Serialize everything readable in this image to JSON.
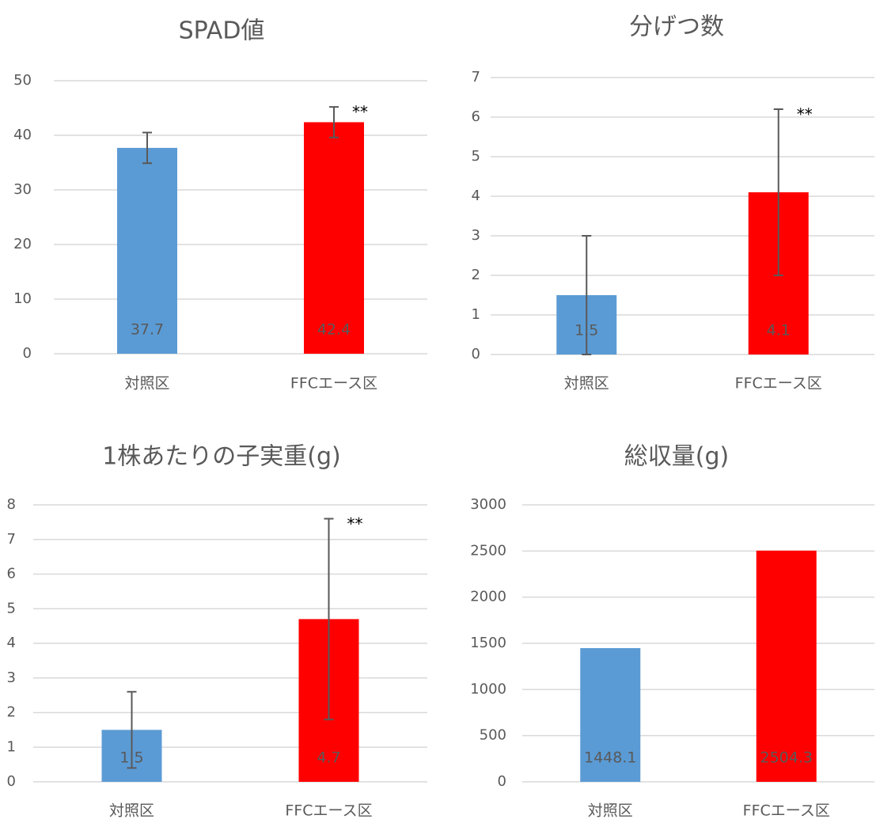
{
  "chart_data": [
    {
      "type": "bar",
      "title": "SPAD値",
      "categories": [
        "対照区",
        "FFCエース区"
      ],
      "values": [
        37.7,
        42.4
      ],
      "errors": [
        2.8,
        2.8
      ],
      "annotations": [
        null,
        "**"
      ],
      "colors": [
        "#5b9bd5",
        "#ff0000"
      ],
      "ylim": [
        0,
        50
      ],
      "yticks": [
        0,
        10,
        20,
        30,
        40,
        50
      ],
      "grid": true
    },
    {
      "type": "bar",
      "title": "分げつ数",
      "categories": [
        "対照区",
        "FFCエース区"
      ],
      "values": [
        1.5,
        4.1
      ],
      "errors": [
        1.5,
        2.1
      ],
      "annotations": [
        null,
        "**"
      ],
      "colors": [
        "#5b9bd5",
        "#ff0000"
      ],
      "ylim": [
        0,
        7
      ],
      "yticks": [
        0,
        1,
        2,
        3,
        4,
        5,
        6,
        7
      ],
      "grid": true
    },
    {
      "type": "bar",
      "title": "1株あたりの子実重(g)",
      "categories": [
        "対照区",
        "FFCエース区"
      ],
      "values": [
        1.5,
        4.7
      ],
      "errors": [
        1.1,
        2.9
      ],
      "annotations": [
        null,
        "**"
      ],
      "colors": [
        "#5b9bd5",
        "#ff0000"
      ],
      "ylim": [
        0,
        8
      ],
      "yticks": [
        0,
        1,
        2,
        3,
        4,
        5,
        6,
        7,
        8
      ],
      "grid": true
    },
    {
      "type": "bar",
      "title": "総収量(g)",
      "categories": [
        "対照区",
        "FFCエース区"
      ],
      "values": [
        1448.1,
        2504.3
      ],
      "colors": [
        "#5b9bd5",
        "#ff0000"
      ],
      "ylim": [
        0,
        3000
      ],
      "yticks": [
        0,
        500,
        1000,
        1500,
        2000,
        2500,
        3000
      ],
      "grid": true
    }
  ]
}
